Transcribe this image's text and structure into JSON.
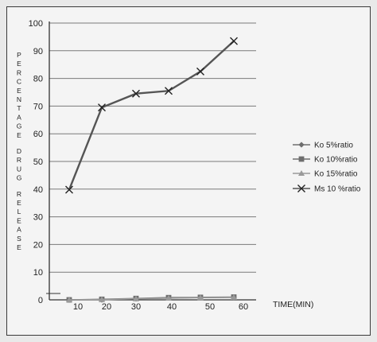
{
  "chart_data": {
    "type": "line",
    "title": "",
    "ylabel": "PERCENTAGE DRUG RELEASE",
    "xlabel": "TIME(MIN)",
    "ylim": [
      0,
      100
    ],
    "yticks": [
      "0",
      "10",
      "20",
      "30",
      "40",
      "50",
      "60",
      "70",
      "80",
      "90",
      "100"
    ],
    "xticks": [
      "10",
      "20",
      "30",
      "40",
      "50",
      "60"
    ],
    "grid": "horizontal",
    "legend_position": "right",
    "series": [
      {
        "name": "Ko 5%ratio",
        "marker": "diamond",
        "color": "#6e6e6e",
        "x": [
          10,
          20,
          30,
          40,
          50,
          60
        ],
        "values": [
          0,
          0,
          0.4,
          0.7,
          0.8,
          0.9
        ]
      },
      {
        "name": "Ko 10%ratio",
        "marker": "square",
        "color": "#6e6e6e",
        "x": [
          10,
          20,
          30,
          40,
          50,
          60
        ],
        "values": [
          0,
          0.2,
          0.5,
          0.8,
          0.9,
          1.0
        ]
      },
      {
        "name": "Ko 15%ratio",
        "marker": "triangle",
        "color": "#9a9a9a",
        "x": [
          10,
          20,
          30,
          40,
          50,
          60
        ],
        "values": [
          0,
          0.1,
          0.4,
          0.6,
          0.8,
          0.9
        ]
      },
      {
        "name": "Ms 10 %ratio",
        "marker": "x",
        "color": "#555555",
        "x": [
          10,
          20,
          30,
          40,
          50,
          60
        ],
        "values": [
          39.8,
          69.5,
          74.5,
          75.5,
          82.5,
          93.5
        ]
      }
    ]
  }
}
